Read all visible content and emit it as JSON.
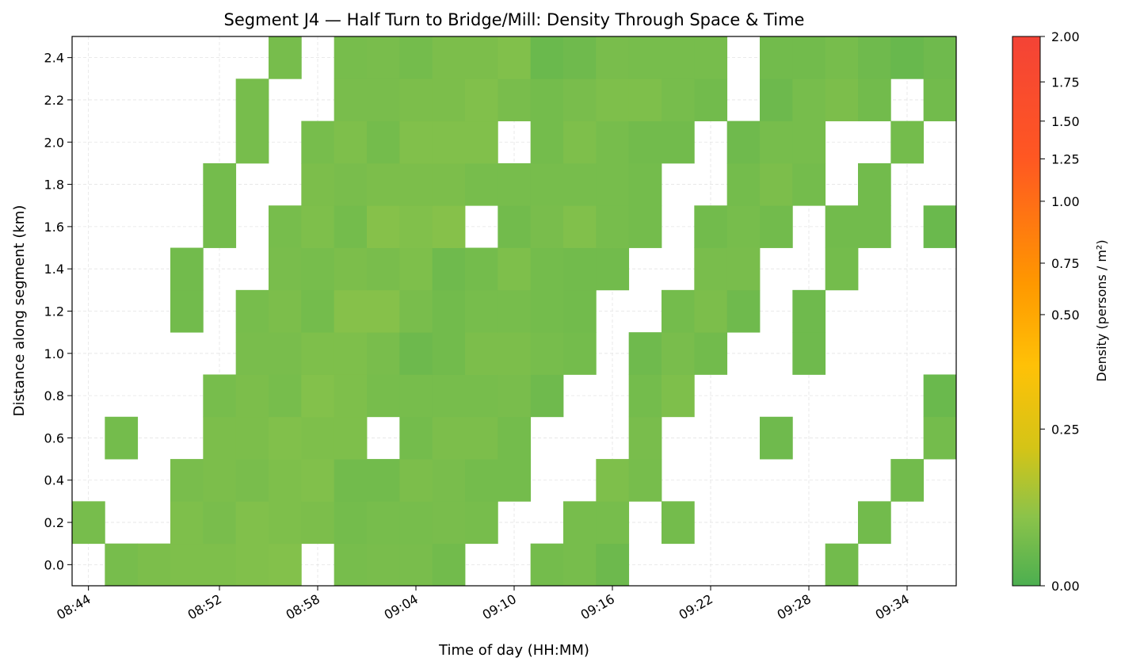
{
  "chart_data": {
    "type": "heatmap",
    "title": "Segment J4 — Half Turn to Bridge/Mill: Density Through Space & Time",
    "xlabel": "Time of day (HH:MM)",
    "ylabel": "Distance along segment (km)",
    "colorbar_label": "Density (persons / m²)",
    "x_ticks": [
      "08:44",
      "08:52",
      "08:58",
      "09:04",
      "09:10",
      "09:16",
      "09:22",
      "09:28",
      "09:34"
    ],
    "y_ticks": [
      "0.0",
      "0.2",
      "0.4",
      "0.6",
      "0.8",
      "1.0",
      "1.2",
      "1.4",
      "1.6",
      "1.8",
      "2.0",
      "2.2",
      "2.4"
    ],
    "colorbar_ticks": [
      "0.00",
      "0.25",
      "0.50",
      "0.75",
      "1.00",
      "1.25",
      "1.50",
      "1.75",
      "2.00"
    ],
    "x_start": "08:43",
    "x_step_minutes": 2,
    "x_bins": 27,
    "y_step_km": 0.2,
    "y_bins": 13,
    "xlim": [
      "08:43",
      "09:37"
    ],
    "ylim": [
      -0.1,
      2.5
    ],
    "clim": [
      0,
      2
    ],
    "colorscale": [
      "#4caf50",
      "#8bc34a",
      "#d4c417",
      "#ffc107",
      "#ff9800",
      "#ff5722",
      "#f44336"
    ],
    "grid": true,
    "rows": [
      [
        null,
        0.17,
        0.19,
        0.2,
        0.2,
        0.21,
        0.22,
        null,
        0.17,
        0.18,
        0.18,
        0.15,
        null,
        null,
        0.16,
        0.17,
        0.13,
        null,
        null,
        null,
        null,
        null,
        null,
        0.15,
        null,
        null,
        null
      ],
      [
        0.17,
        null,
        null,
        0.2,
        0.18,
        0.21,
        0.2,
        0.19,
        0.16,
        0.17,
        0.17,
        0.18,
        0.17,
        null,
        null,
        0.17,
        0.17,
        null,
        0.16,
        null,
        null,
        null,
        null,
        null,
        0.15,
        null,
        null
      ],
      [
        null,
        null,
        null,
        0.18,
        0.19,
        0.18,
        0.2,
        0.21,
        0.15,
        0.15,
        0.19,
        0.18,
        0.16,
        0.16,
        null,
        null,
        0.2,
        0.17,
        null,
        null,
        null,
        null,
        null,
        null,
        null,
        0.15,
        null
      ],
      [
        null,
        0.16,
        null,
        null,
        0.19,
        0.19,
        0.21,
        0.2,
        0.2,
        null,
        0.16,
        0.19,
        0.19,
        0.16,
        null,
        null,
        null,
        0.18,
        null,
        null,
        null,
        0.14,
        null,
        null,
        null,
        null,
        0.16
      ],
      [
        null,
        null,
        null,
        null,
        0.17,
        0.19,
        0.17,
        0.22,
        0.2,
        0.17,
        0.17,
        0.17,
        0.17,
        0.18,
        0.14,
        null,
        null,
        0.16,
        0.2,
        null,
        null,
        null,
        null,
        null,
        null,
        null,
        0.12
      ],
      [
        null,
        null,
        null,
        null,
        null,
        0.18,
        0.18,
        0.2,
        0.2,
        0.18,
        0.13,
        0.15,
        0.19,
        0.19,
        0.17,
        0.16,
        null,
        0.14,
        0.18,
        0.15,
        null,
        null,
        0.14,
        null,
        null,
        null,
        null
      ],
      [
        null,
        null,
        null,
        0.15,
        null,
        0.17,
        0.19,
        0.16,
        0.23,
        0.23,
        0.18,
        0.15,
        0.17,
        0.17,
        0.16,
        0.15,
        null,
        null,
        0.16,
        0.19,
        0.14,
        null,
        0.14,
        null,
        null,
        null,
        null
      ],
      [
        null,
        null,
        null,
        0.15,
        null,
        null,
        0.18,
        0.17,
        0.19,
        0.18,
        0.2,
        0.14,
        0.16,
        0.2,
        0.16,
        0.15,
        0.15,
        null,
        null,
        0.18,
        0.18,
        null,
        null,
        0.16,
        null,
        null,
        null
      ],
      [
        null,
        null,
        null,
        null,
        0.16,
        null,
        0.17,
        0.2,
        0.16,
        0.23,
        0.21,
        0.23,
        null,
        0.15,
        0.18,
        0.21,
        0.17,
        0.16,
        null,
        0.15,
        0.17,
        0.15,
        null,
        0.15,
        0.15,
        null,
        0.12
      ],
      [
        null,
        null,
        null,
        null,
        0.16,
        null,
        null,
        0.19,
        0.18,
        0.19,
        0.19,
        0.19,
        0.17,
        0.17,
        0.17,
        0.17,
        0.17,
        0.16,
        null,
        null,
        0.16,
        0.19,
        0.16,
        null,
        0.15,
        null,
        null
      ],
      [
        null,
        null,
        null,
        null,
        null,
        0.17,
        null,
        0.17,
        0.2,
        0.16,
        0.21,
        0.21,
        0.21,
        null,
        0.16,
        0.2,
        0.17,
        0.15,
        0.15,
        null,
        0.14,
        0.17,
        0.17,
        null,
        null,
        0.16,
        null
      ],
      [
        null,
        null,
        null,
        null,
        null,
        0.17,
        null,
        null,
        0.18,
        0.18,
        0.19,
        0.19,
        0.21,
        0.18,
        0.16,
        0.18,
        0.2,
        0.2,
        0.17,
        0.15,
        null,
        0.13,
        0.17,
        0.19,
        0.15,
        null,
        0.15
      ],
      [
        null,
        null,
        null,
        null,
        null,
        null,
        0.17,
        null,
        0.17,
        0.18,
        0.16,
        0.19,
        0.19,
        0.21,
        0.12,
        0.14,
        0.18,
        0.17,
        0.17,
        0.17,
        null,
        0.15,
        0.15,
        0.17,
        0.14,
        0.11,
        0.14
      ]
    ]
  }
}
